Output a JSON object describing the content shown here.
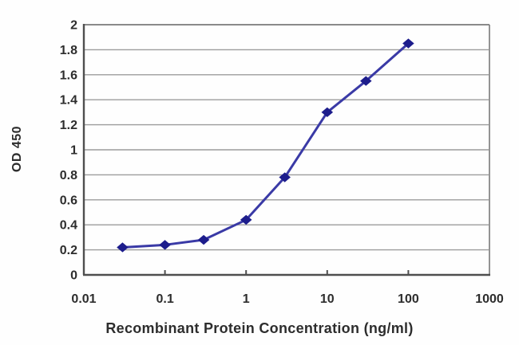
{
  "chart_data": {
    "type": "line",
    "title": "",
    "xlabel": "Recombinant Protein Concentration (ng/ml)",
    "ylabel": "OD 450",
    "x_scale": "log",
    "xlim": [
      0.01,
      1000
    ],
    "ylim": [
      0,
      2
    ],
    "grid": "horizontal-only",
    "legend": "none",
    "x": [
      0.03,
      0.1,
      0.3,
      1,
      3,
      10,
      30,
      100
    ],
    "series": [
      {
        "name": "OD 450",
        "marker": "diamond",
        "values": [
          0.22,
          0.24,
          0.28,
          0.44,
          0.78,
          1.3,
          1.55,
          1.85
        ]
      }
    ],
    "x_ticks": [
      {
        "value": 0.01,
        "label": "0.01"
      },
      {
        "value": 0.1,
        "label": "0.1"
      },
      {
        "value": 1,
        "label": "1"
      },
      {
        "value": 10,
        "label": "10"
      },
      {
        "value": 100,
        "label": "100"
      },
      {
        "value": 1000,
        "label": "1000"
      }
    ],
    "y_ticks": [
      {
        "value": 0,
        "label": "0"
      },
      {
        "value": 0.2,
        "label": "0.2"
      },
      {
        "value": 0.4,
        "label": "0.4"
      },
      {
        "value": 0.6,
        "label": "0.6"
      },
      {
        "value": 0.8,
        "label": "0.8"
      },
      {
        "value": 1,
        "label": "1"
      },
      {
        "value": 1.2,
        "label": "1.2"
      },
      {
        "value": 1.4,
        "label": "1.4"
      },
      {
        "value": 1.6,
        "label": "1.6"
      },
      {
        "value": 1.8,
        "label": "1.8"
      },
      {
        "value": 2,
        "label": "2"
      }
    ],
    "colors": {
      "line": "#3a3aa6",
      "marker": "#1d1d8c",
      "grid": "#9c9c9c",
      "spine": "#4f4f4f",
      "border": "#7a7a7a",
      "text": "#2d2d2d",
      "background": "#fefefe"
    }
  }
}
